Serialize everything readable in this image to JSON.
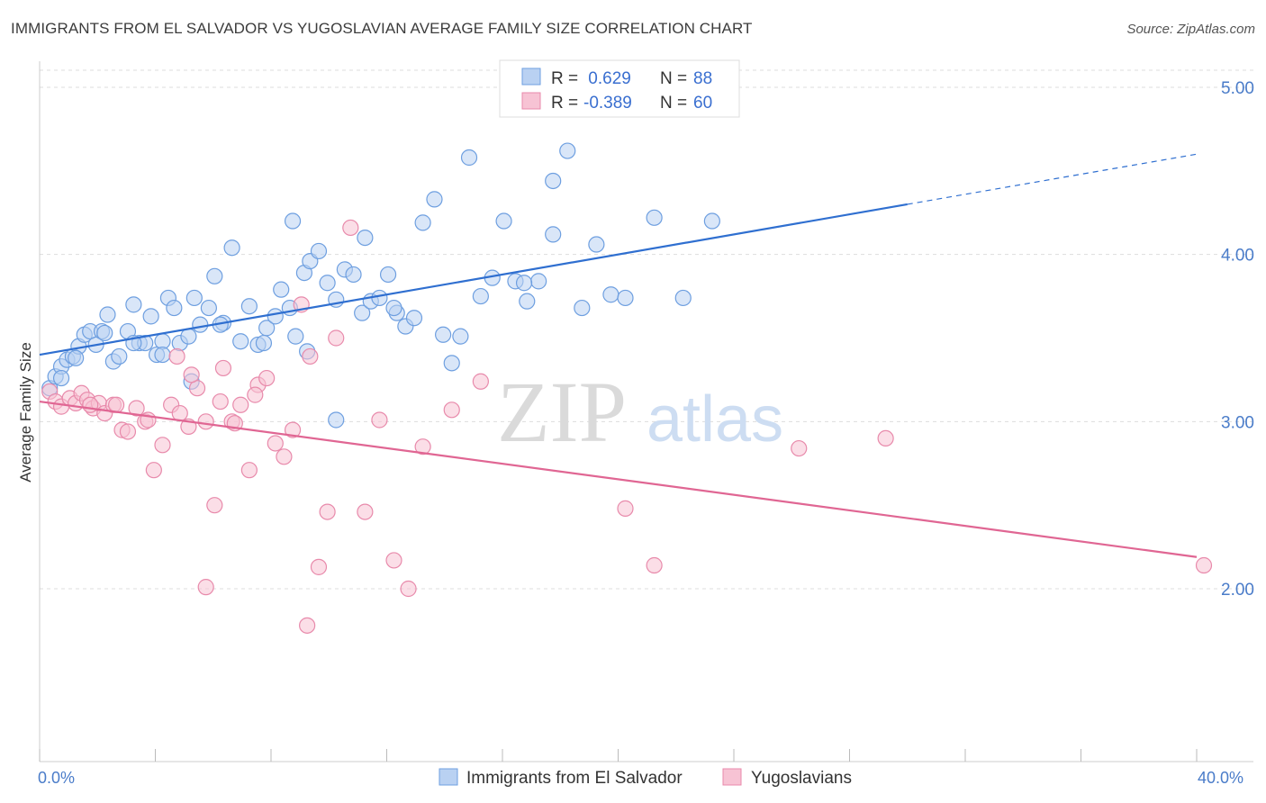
{
  "title": "IMMIGRANTS FROM EL SALVADOR VS YUGOSLAVIAN AVERAGE FAMILY SIZE CORRELATION CHART",
  "source": "Source: ZipAtlas.com",
  "watermark": {
    "zip": "ZIP",
    "atlas": "atlas"
  },
  "colors": {
    "blue_fill": "#b9d1f2",
    "blue_stroke": "#6e9fe0",
    "blue_line": "#2f6fd0",
    "pink_fill": "#f7c3d4",
    "pink_stroke": "#e88aab",
    "pink_line": "#e06693",
    "grid": "#dddddd",
    "axis_text": "#4a7cc9"
  },
  "legend": {
    "rows": [
      {
        "r_label": "R = ",
        "r_value": " 0.629",
        "n_label": "N = ",
        "n_value": "88"
      },
      {
        "r_label": "R = ",
        "r_value": "-0.389",
        "n_label": "N = ",
        "n_value": "60"
      }
    ]
  },
  "chart_data": {
    "type": "scatter",
    "xlabel": "",
    "ylabel": "Average Family Size",
    "xlim": [
      0,
      40
    ],
    "ylim": [
      1.2,
      5.2
    ],
    "x_tick_labels": [
      "0.0%",
      "40.0%"
    ],
    "y_ticks": [
      2.0,
      3.0,
      4.0,
      5.0
    ],
    "y_tick_labels": [
      "2.00",
      "3.00",
      "4.00",
      "5.00"
    ],
    "grid": true,
    "legend_position": "top-center",
    "series": [
      {
        "name": "Immigrants from El Salvador",
        "color": "blue",
        "trend": {
          "x0": 0,
          "y0": 3.4,
          "x1": 30,
          "y1": 4.3,
          "dashed_to_x": 40,
          "dashed_to_y": 4.6
        },
        "points": [
          [
            0.1,
            3.2
          ],
          [
            0.3,
            3.27
          ],
          [
            0.5,
            3.33
          ],
          [
            0.7,
            3.37
          ],
          [
            0.9,
            3.39
          ],
          [
            1.1,
            3.45
          ],
          [
            1.3,
            3.52
          ],
          [
            1.5,
            3.54
          ],
          [
            1.7,
            3.46
          ],
          [
            1.9,
            3.54
          ],
          [
            2.1,
            3.64
          ],
          [
            2.3,
            3.36
          ],
          [
            2.5,
            3.39
          ],
          [
            2.8,
            3.54
          ],
          [
            3.0,
            3.7
          ],
          [
            3.2,
            3.47
          ],
          [
            3.4,
            3.47
          ],
          [
            3.6,
            3.63
          ],
          [
            3.8,
            3.4
          ],
          [
            4.0,
            3.48
          ],
          [
            4.2,
            3.74
          ],
          [
            4.4,
            3.68
          ],
          [
            4.6,
            3.47
          ],
          [
            4.9,
            3.51
          ],
          [
            5.1,
            3.74
          ],
          [
            5.3,
            3.58
          ],
          [
            5.6,
            3.68
          ],
          [
            5.8,
            3.87
          ],
          [
            6.1,
            3.59
          ],
          [
            6.4,
            4.04
          ],
          [
            6.7,
            3.48
          ],
          [
            7.0,
            3.69
          ],
          [
            7.3,
            3.46
          ],
          [
            7.6,
            3.56
          ],
          [
            7.9,
            3.63
          ],
          [
            8.1,
            3.79
          ],
          [
            8.4,
            3.68
          ],
          [
            8.6,
            3.51
          ],
          [
            8.9,
            3.89
          ],
          [
            9.1,
            3.96
          ],
          [
            9.4,
            4.02
          ],
          [
            9.7,
            3.83
          ],
          [
            10.0,
            3.73
          ],
          [
            10.3,
            3.91
          ],
          [
            10.6,
            3.88
          ],
          [
            10.9,
            3.65
          ],
          [
            11.2,
            3.72
          ],
          [
            11.5,
            3.74
          ],
          [
            11.8,
            3.88
          ],
          [
            12.1,
            3.65
          ],
          [
            12.4,
            3.57
          ],
          [
            12.7,
            3.62
          ],
          [
            13.0,
            4.19
          ],
          [
            13.4,
            4.33
          ],
          [
            13.7,
            3.52
          ],
          [
            14.0,
            3.35
          ],
          [
            14.3,
            3.51
          ],
          [
            14.6,
            4.58
          ],
          [
            15.0,
            3.75
          ],
          [
            15.4,
            3.86
          ],
          [
            15.8,
            4.2
          ],
          [
            16.2,
            3.84
          ],
          [
            16.6,
            3.72
          ],
          [
            17.0,
            3.84
          ],
          [
            17.5,
            4.44
          ],
          [
            18.0,
            4.62
          ],
          [
            18.5,
            3.68
          ],
          [
            19.0,
            4.06
          ],
          [
            19.5,
            3.76
          ],
          [
            20.0,
            3.74
          ],
          [
            21.0,
            4.22
          ],
          [
            22.0,
            3.74
          ],
          [
            23.0,
            4.2
          ],
          [
            9.0,
            3.42
          ],
          [
            10.0,
            3.01
          ],
          [
            8.5,
            4.2
          ],
          [
            7.5,
            3.47
          ],
          [
            6.0,
            3.58
          ],
          [
            5.0,
            3.24
          ],
          [
            4.0,
            3.4
          ],
          [
            3.0,
            3.47
          ],
          [
            2.0,
            3.53
          ],
          [
            1.0,
            3.38
          ],
          [
            0.5,
            3.26
          ],
          [
            11.0,
            4.1
          ],
          [
            12.0,
            3.68
          ],
          [
            17.5,
            4.12
          ],
          [
            16.5,
            3.83
          ]
        ]
      },
      {
        "name": "Yugoslavians",
        "color": "pink",
        "trend": {
          "x0": 0,
          "y0": 3.12,
          "x1": 40,
          "y1": 2.19
        },
        "points": [
          [
            0.1,
            3.18
          ],
          [
            0.3,
            3.12
          ],
          [
            0.5,
            3.09
          ],
          [
            0.8,
            3.14
          ],
          [
            1.0,
            3.11
          ],
          [
            1.2,
            3.17
          ],
          [
            1.4,
            3.13
          ],
          [
            1.6,
            3.08
          ],
          [
            1.8,
            3.11
          ],
          [
            2.0,
            3.05
          ],
          [
            2.3,
            3.1
          ],
          [
            2.6,
            2.95
          ],
          [
            2.8,
            2.94
          ],
          [
            3.1,
            3.08
          ],
          [
            3.4,
            3.0
          ],
          [
            3.7,
            2.71
          ],
          [
            4.0,
            2.86
          ],
          [
            4.3,
            3.1
          ],
          [
            4.6,
            3.05
          ],
          [
            4.9,
            2.97
          ],
          [
            5.2,
            3.2
          ],
          [
            5.5,
            3.0
          ],
          [
            5.8,
            2.5
          ],
          [
            6.1,
            3.32
          ],
          [
            6.4,
            3.0
          ],
          [
            6.7,
            3.1
          ],
          [
            7.0,
            2.71
          ],
          [
            7.3,
            3.22
          ],
          [
            7.6,
            3.26
          ],
          [
            7.9,
            2.87
          ],
          [
            8.2,
            2.79
          ],
          [
            8.5,
            2.95
          ],
          [
            8.8,
            3.7
          ],
          [
            9.1,
            3.39
          ],
          [
            9.4,
            2.13
          ],
          [
            9.7,
            2.46
          ],
          [
            10.0,
            3.5
          ],
          [
            10.5,
            4.16
          ],
          [
            11.0,
            2.46
          ],
          [
            11.5,
            3.01
          ],
          [
            12.0,
            2.17
          ],
          [
            12.5,
            2.0
          ],
          [
            13.0,
            2.85
          ],
          [
            14.0,
            3.07
          ],
          [
            15.0,
            3.24
          ],
          [
            20.0,
            2.48
          ],
          [
            21.0,
            2.14
          ],
          [
            26.0,
            2.84
          ],
          [
            29.0,
            2.9
          ],
          [
            40.0,
            2.14
          ],
          [
            3.5,
            3.01
          ],
          [
            4.5,
            3.39
          ],
          [
            5.0,
            3.28
          ],
          [
            5.5,
            2.01
          ],
          [
            6.0,
            3.12
          ],
          [
            6.5,
            2.99
          ],
          [
            7.2,
            3.16
          ],
          [
            1.5,
            3.1
          ],
          [
            2.4,
            3.1
          ],
          [
            9.0,
            1.78
          ]
        ]
      }
    ]
  }
}
